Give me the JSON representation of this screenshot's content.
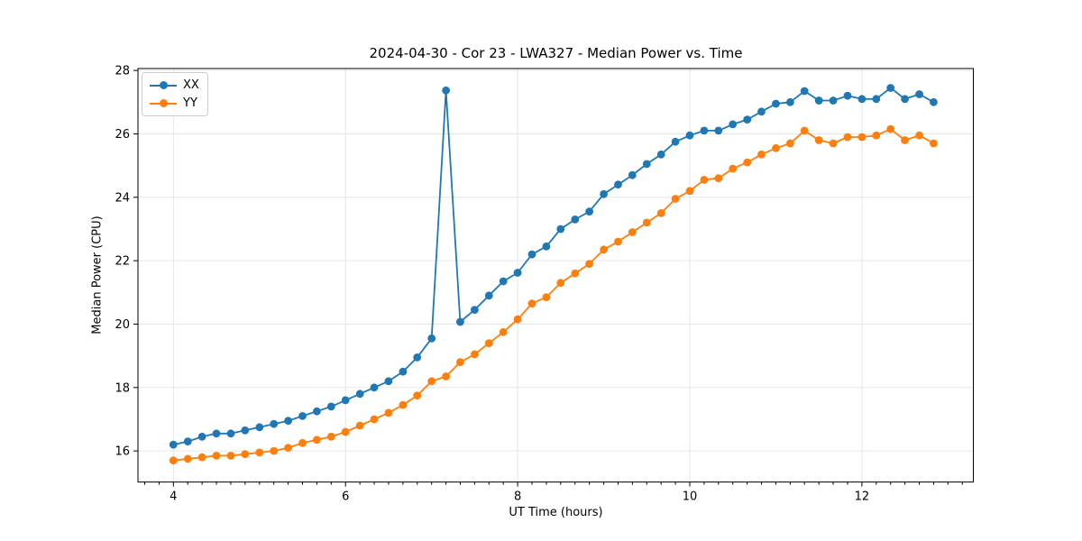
{
  "chart_data": {
    "type": "line",
    "title": "2024-04-30 - Cor 23 - LWA327 - Median Power vs. Time",
    "xlabel": "UT Time (hours)",
    "ylabel": "Median Power (CPU)",
    "xlim": [
      3.588,
      13.295
    ],
    "ylim": [
      15.02,
      28.06
    ],
    "xticks": [
      4,
      6,
      8,
      10,
      12
    ],
    "yticks": [
      16,
      18,
      20,
      22,
      24,
      26,
      28
    ],
    "x_minor_step": 0.166667,
    "grid": true,
    "legend_position": "upper-left",
    "background": "#ffffff",
    "grid_color": "#e6e6e6",
    "spine_color": "#000000",
    "x": [
      4.0,
      4.167,
      4.333,
      4.5,
      4.667,
      4.833,
      5.0,
      5.167,
      5.333,
      5.5,
      5.667,
      5.833,
      6.0,
      6.167,
      6.333,
      6.5,
      6.667,
      6.833,
      7.0,
      7.167,
      7.333,
      7.5,
      7.667,
      7.833,
      8.0,
      8.167,
      8.333,
      8.5,
      8.667,
      8.833,
      9.0,
      9.167,
      9.333,
      9.5,
      9.667,
      9.833,
      10.0,
      10.167,
      10.333,
      10.5,
      10.667,
      10.833,
      11.0,
      11.167,
      11.333,
      11.5,
      11.667,
      11.833,
      12.0,
      12.167,
      12.333,
      12.5,
      12.667,
      12.833
    ],
    "series": [
      {
        "name": "XX",
        "color": "#1f77b4",
        "marker": "circle",
        "values": [
          16.2,
          16.3,
          16.45,
          16.55,
          16.55,
          16.65,
          16.75,
          16.85,
          16.95,
          17.1,
          17.25,
          17.4,
          17.6,
          17.8,
          18.0,
          18.2,
          18.5,
          18.95,
          19.55,
          27.37,
          20.07,
          20.45,
          20.9,
          21.35,
          21.62,
          22.2,
          22.45,
          23.0,
          23.3,
          23.55,
          24.1,
          24.4,
          24.7,
          25.05,
          25.35,
          25.75,
          25.95,
          26.1,
          26.1,
          26.3,
          26.45,
          26.7,
          26.95,
          27.0,
          27.35,
          27.05,
          27.05,
          27.2,
          27.1,
          27.1,
          27.45,
          27.1,
          27.25,
          27.0
        ]
      },
      {
        "name": "YY",
        "color": "#ff7f0e",
        "marker": "circle",
        "values": [
          15.7,
          15.75,
          15.8,
          15.85,
          15.85,
          15.9,
          15.95,
          16.0,
          16.1,
          16.25,
          16.35,
          16.45,
          16.6,
          16.8,
          17.0,
          17.2,
          17.45,
          17.75,
          18.2,
          18.35,
          18.8,
          19.05,
          19.4,
          19.75,
          20.15,
          20.65,
          20.85,
          21.3,
          21.6,
          21.9,
          22.35,
          22.6,
          22.9,
          23.2,
          23.5,
          23.95,
          24.2,
          24.55,
          24.6,
          24.9,
          25.1,
          25.35,
          25.55,
          25.7,
          26.1,
          25.8,
          25.7,
          25.9,
          25.9,
          25.95,
          26.15,
          25.8,
          25.95,
          25.7
        ]
      }
    ]
  }
}
